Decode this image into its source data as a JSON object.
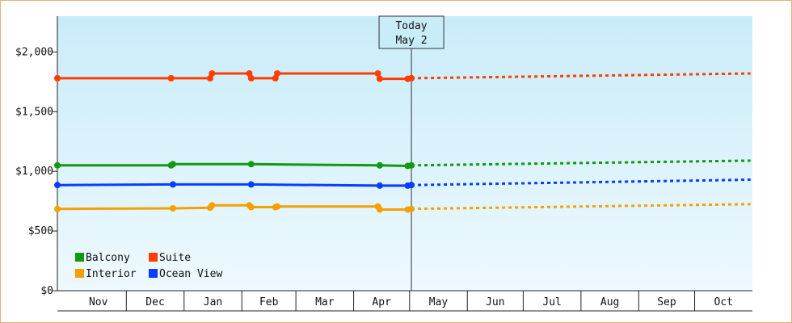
{
  "chart_data": {
    "type": "line",
    "title": "",
    "xlabel": "",
    "ylabel": "",
    "ylim": [
      0,
      2300
    ],
    "y_ticks": [
      {
        "value": 0,
        "label": "$0"
      },
      {
        "value": 500,
        "label": "$500"
      },
      {
        "value": 1000,
        "label": "$1,000"
      },
      {
        "value": 1500,
        "label": "$1,500"
      },
      {
        "value": 2000,
        "label": "$2,000"
      }
    ],
    "x_domain": [
      "2023-10-25",
      "2024-10-31"
    ],
    "months": [
      {
        "label": "Nov",
        "start": "2023-11-01",
        "end": "2023-11-30"
      },
      {
        "label": "Dec",
        "start": "2023-12-01",
        "end": "2023-12-31"
      },
      {
        "label": "Jan",
        "start": "2024-01-01",
        "end": "2024-01-31"
      },
      {
        "label": "Feb",
        "start": "2024-02-01",
        "end": "2024-02-29"
      },
      {
        "label": "Mar",
        "start": "2024-03-01",
        "end": "2024-03-31"
      },
      {
        "label": "Apr",
        "start": "2024-04-01",
        "end": "2024-04-30"
      },
      {
        "label": "May",
        "start": "2024-05-01",
        "end": "2024-05-31"
      },
      {
        "label": "Jun",
        "start": "2024-06-01",
        "end": "2024-06-30"
      },
      {
        "label": "Jul",
        "start": "2024-07-01",
        "end": "2024-07-31"
      },
      {
        "label": "Aug",
        "start": "2024-08-01",
        "end": "2024-08-31"
      },
      {
        "label": "Sep",
        "start": "2024-09-01",
        "end": "2024-09-30"
      },
      {
        "label": "Oct",
        "start": "2024-10-01",
        "end": "2024-10-31"
      }
    ],
    "today": {
      "line1": "Today",
      "line2": "May 2",
      "date": "2024-05-02"
    },
    "legend_position": "bottom-left",
    "grid": false,
    "series": [
      {
        "name": "Suite",
        "color": "#ff3d00",
        "history": [
          [
            "2023-10-25",
            1780
          ],
          [
            "2023-12-25",
            1780
          ],
          [
            "2024-01-15",
            1780
          ],
          [
            "2024-01-16",
            1820
          ],
          [
            "2024-02-05",
            1820
          ],
          [
            "2024-02-06",
            1780
          ],
          [
            "2024-02-19",
            1780
          ],
          [
            "2024-02-20",
            1820
          ],
          [
            "2024-04-14",
            1820
          ],
          [
            "2024-04-15",
            1775
          ],
          [
            "2024-04-30",
            1775
          ],
          [
            "2024-05-02",
            1780
          ]
        ],
        "forecast": [
          [
            "2024-05-02",
            1780
          ],
          [
            "2024-10-31",
            1820
          ]
        ]
      },
      {
        "name": "Balcony",
        "color": "#119911",
        "history": [
          [
            "2023-10-25",
            1050
          ],
          [
            "2023-12-25",
            1050
          ],
          [
            "2023-12-26",
            1060
          ],
          [
            "2024-02-06",
            1060
          ],
          [
            "2024-04-15",
            1050
          ],
          [
            "2024-04-30",
            1045
          ],
          [
            "2024-05-02",
            1050
          ]
        ],
        "forecast": [
          [
            "2024-05-02",
            1050
          ],
          [
            "2024-10-31",
            1090
          ]
        ]
      },
      {
        "name": "Ocean View",
        "color": "#0a3dff",
        "history": [
          [
            "2023-10-25",
            885
          ],
          [
            "2023-12-26",
            890
          ],
          [
            "2024-02-06",
            890
          ],
          [
            "2024-04-15",
            880
          ],
          [
            "2024-04-30",
            880
          ],
          [
            "2024-05-02",
            885
          ]
        ],
        "forecast": [
          [
            "2024-05-02",
            885
          ],
          [
            "2024-10-31",
            930
          ]
        ]
      },
      {
        "name": "Interior",
        "color": "#f5a000",
        "history": [
          [
            "2023-10-25",
            685
          ],
          [
            "2023-12-26",
            690
          ],
          [
            "2024-01-15",
            695
          ],
          [
            "2024-01-16",
            715
          ],
          [
            "2024-02-05",
            715
          ],
          [
            "2024-02-06",
            700
          ],
          [
            "2024-02-19",
            700
          ],
          [
            "2024-02-20",
            705
          ],
          [
            "2024-04-14",
            705
          ],
          [
            "2024-04-15",
            680
          ],
          [
            "2024-04-30",
            680
          ],
          [
            "2024-05-02",
            685
          ]
        ],
        "forecast": [
          [
            "2024-05-02",
            685
          ],
          [
            "2024-10-31",
            725
          ]
        ]
      }
    ],
    "legend": [
      {
        "name": "Balcony",
        "color": "#119911"
      },
      {
        "name": "Suite",
        "color": "#ff3d00"
      },
      {
        "name": "Interior",
        "color": "#f5a000"
      },
      {
        "name": "Ocean View",
        "color": "#0a3dff"
      }
    ]
  }
}
